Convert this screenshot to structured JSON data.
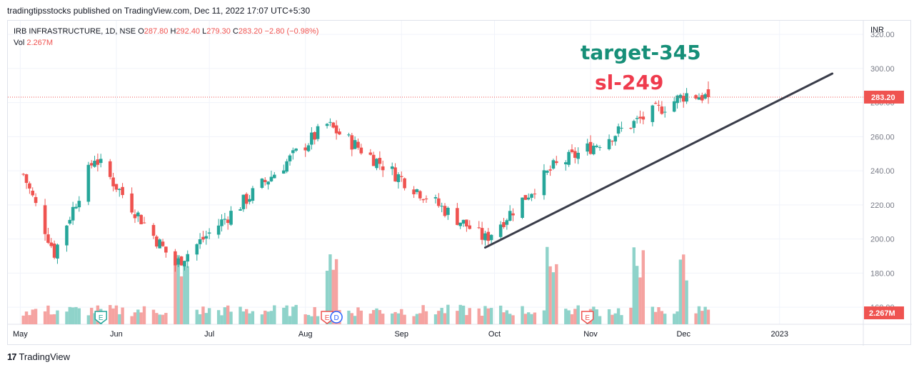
{
  "header": {
    "published": "tradingtipsstocks published on TradingView.com, Dec 11, 2022 17:07 UTC+5:30"
  },
  "legend": {
    "symbol": "IRB INFRASTRUCTURE, 1D, NSE",
    "o_label": "O",
    "o_value": "287.80",
    "h_label": "H",
    "h_value": "292.40",
    "l_label": "L",
    "l_value": "279.30",
    "c_label": "C",
    "c_value": "283.20",
    "change": "−2.80 (−0.98%)",
    "vol_label": "Vol",
    "vol_value": "2.267M"
  },
  "annotations": {
    "target": "target-345",
    "sl": "sl-249"
  },
  "price_axis": {
    "currency": "INR",
    "last_price": "283.20",
    "last_volume": "2.267M"
  },
  "footer": {
    "brand": "TradingView",
    "logo": "17"
  },
  "colors": {
    "up": "#26a69a",
    "down": "#ef5350",
    "vol_up": "#8fd3ca",
    "vol_down": "#f5a3a1",
    "trendline": "#3a3d4a",
    "target_text": "#168f78",
    "sl_text": "#ef3b4d",
    "grid": "#f0f3fa"
  },
  "chart_data": {
    "type": "candlestick",
    "title": "IRB INFRASTRUCTURE, 1D, NSE",
    "y_ticks": [
      160,
      180,
      200,
      220,
      240,
      260,
      280,
      300,
      320
    ],
    "ylim": [
      150,
      328
    ],
    "x_ticks": [
      "May",
      "Jun",
      "Jul",
      "Aug",
      "Sep",
      "Oct",
      "Nov",
      "Dec",
      "2023"
    ],
    "x_tick_dates": [
      "2022-05-01",
      "2022-06-01",
      "2022-07-01",
      "2022-08-01",
      "2022-09-01",
      "2022-10-01",
      "2022-11-01",
      "2022-12-01",
      "2023-01-01"
    ],
    "last_price": 283.2,
    "key_points": [
      {
        "date": "2022-05-02",
        "close": 238
      },
      {
        "date": "2022-05-12",
        "close": 192
      },
      {
        "date": "2022-05-25",
        "close": 248
      },
      {
        "date": "2022-06-20",
        "close": 185
      },
      {
        "date": "2022-08-08",
        "close": 267
      },
      {
        "date": "2022-09-28",
        "close": 200
      },
      {
        "date": "2022-10-20",
        "close": 242
      },
      {
        "date": "2022-11-07",
        "close": 260
      },
      {
        "date": "2022-12-02",
        "close": 285
      },
      {
        "date": "2022-12-09",
        "close": 283.2
      }
    ],
    "trendline": {
      "start": {
        "date": "2022-09-28",
        "price": 195
      },
      "end": {
        "date": "2023-01-18",
        "price": 297
      }
    },
    "events": [
      {
        "type": "E",
        "date": "2022-05-27",
        "color": "#26a69a"
      },
      {
        "type": "E",
        "date": "2022-08-08",
        "color": "#ef5350"
      },
      {
        "type": "D",
        "date": "2022-08-11",
        "color": "#2962ff"
      },
      {
        "type": "E",
        "date": "2022-10-31",
        "color": "#ef5350"
      }
    ],
    "volume": {
      "last": "2.267M",
      "spikes": [
        {
          "date": "2022-06-22"
        },
        {
          "date": "2022-08-09"
        },
        {
          "date": "2022-10-20"
        },
        {
          "date": "2022-11-17"
        },
        {
          "date": "2022-12-02"
        }
      ]
    }
  }
}
